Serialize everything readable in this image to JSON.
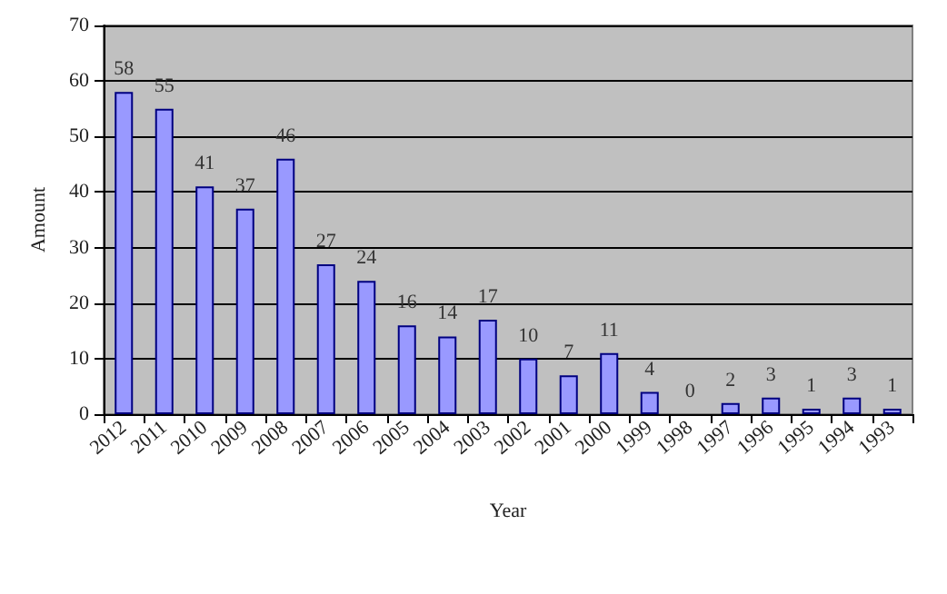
{
  "chart_data": {
    "type": "bar",
    "xlabel": "Year",
    "ylabel": "Amount",
    "categories": [
      "2012",
      "2011",
      "2010",
      "2009",
      "2008",
      "2007",
      "2006",
      "2005",
      "2004",
      "2003",
      "2002",
      "2001",
      "2000",
      "1999",
      "1998",
      "1997",
      "1996",
      "1995",
      "1994",
      "1993"
    ],
    "values": [
      58,
      55,
      41,
      37,
      46,
      27,
      24,
      16,
      14,
      17,
      10,
      7,
      11,
      4,
      0,
      2,
      3,
      1,
      3,
      1
    ],
    "color": "#9999ff",
    "ylim": [
      0,
      70
    ],
    "yticks": [
      0,
      10,
      20,
      30,
      40,
      50,
      60,
      70
    ],
    "grid": "y",
    "data_labels": true
  }
}
